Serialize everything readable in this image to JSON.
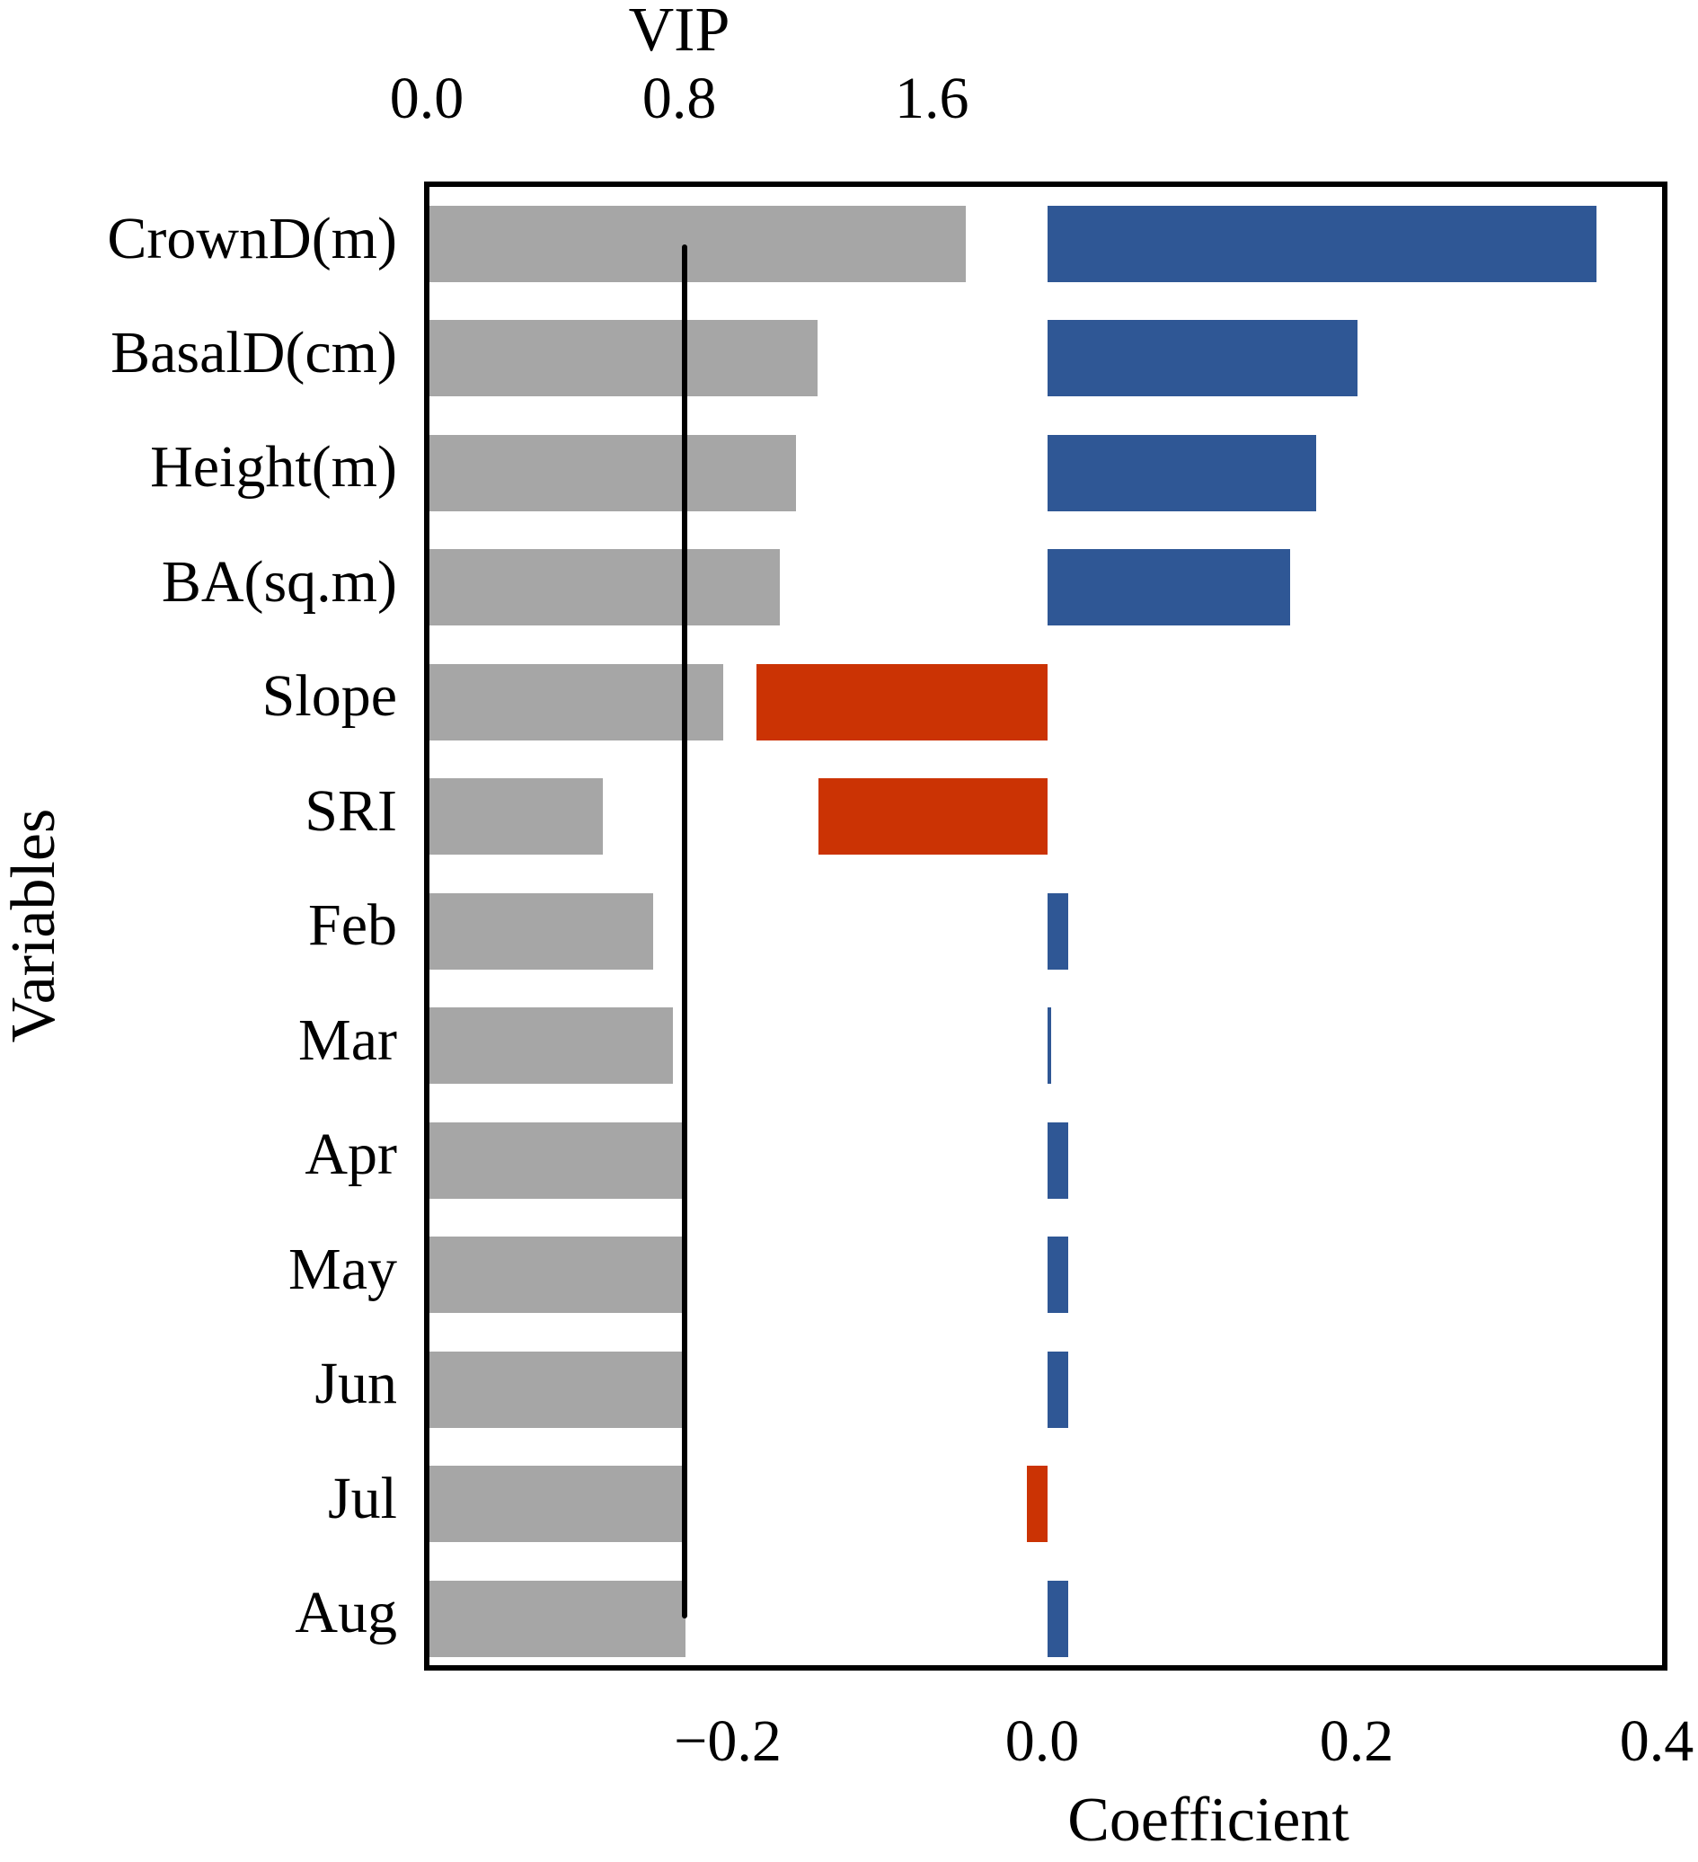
{
  "colors": {
    "vip_bar": "#A6A6A6",
    "coefficient_positive": "#2F5795",
    "coefficient_negative": "#CB3304",
    "axis_and_text": "#000000",
    "background": "#FFFFFF"
  },
  "chart_data": {
    "type": "bar",
    "orientation": "horizontal",
    "title": "",
    "ylabel": "Variables",
    "categories": [
      "CrownD(m)",
      "BasalD(cm)",
      "Height(m)",
      "BA(sq.m)",
      "Slope",
      "SRI",
      "Feb",
      "Mar",
      "Apr",
      "May",
      "Jun",
      "Jul",
      "Aug"
    ],
    "series": [
      {
        "name": "VIP",
        "axis": "top",
        "color": "#A6A6A6",
        "values": [
          1.7,
          1.23,
          1.16,
          1.11,
          0.93,
          0.55,
          0.71,
          0.77,
          0.8,
          0.81,
          0.81,
          0.81,
          0.81
        ]
      },
      {
        "name": "Coefficient",
        "axis": "bottom",
        "color_positive": "#2F5795",
        "color_negative": "#CB3304",
        "values": [
          0.349,
          0.197,
          0.171,
          0.154,
          -0.185,
          -0.146,
          0.013,
          0.002,
          0.013,
          0.013,
          0.013,
          -0.013,
          0.013
        ]
      }
    ],
    "top_axis": {
      "label": "VIP",
      "tick_labels": [
        "0.0",
        "0.8",
        "1.6"
      ],
      "tick_values": [
        0.0,
        0.8,
        1.6
      ],
      "range": [
        0.0,
        3.94
      ]
    },
    "bottom_axis": {
      "label": "Coefficient",
      "tick_labels": [
        "−0.2",
        "0.0",
        "0.2",
        "0.4"
      ],
      "tick_values": [
        -0.2,
        0.0,
        0.2,
        0.4
      ],
      "range": [
        -0.393,
        0.398
      ]
    },
    "vip_threshold_line": 0.8,
    "grid": false,
    "legend": false
  }
}
